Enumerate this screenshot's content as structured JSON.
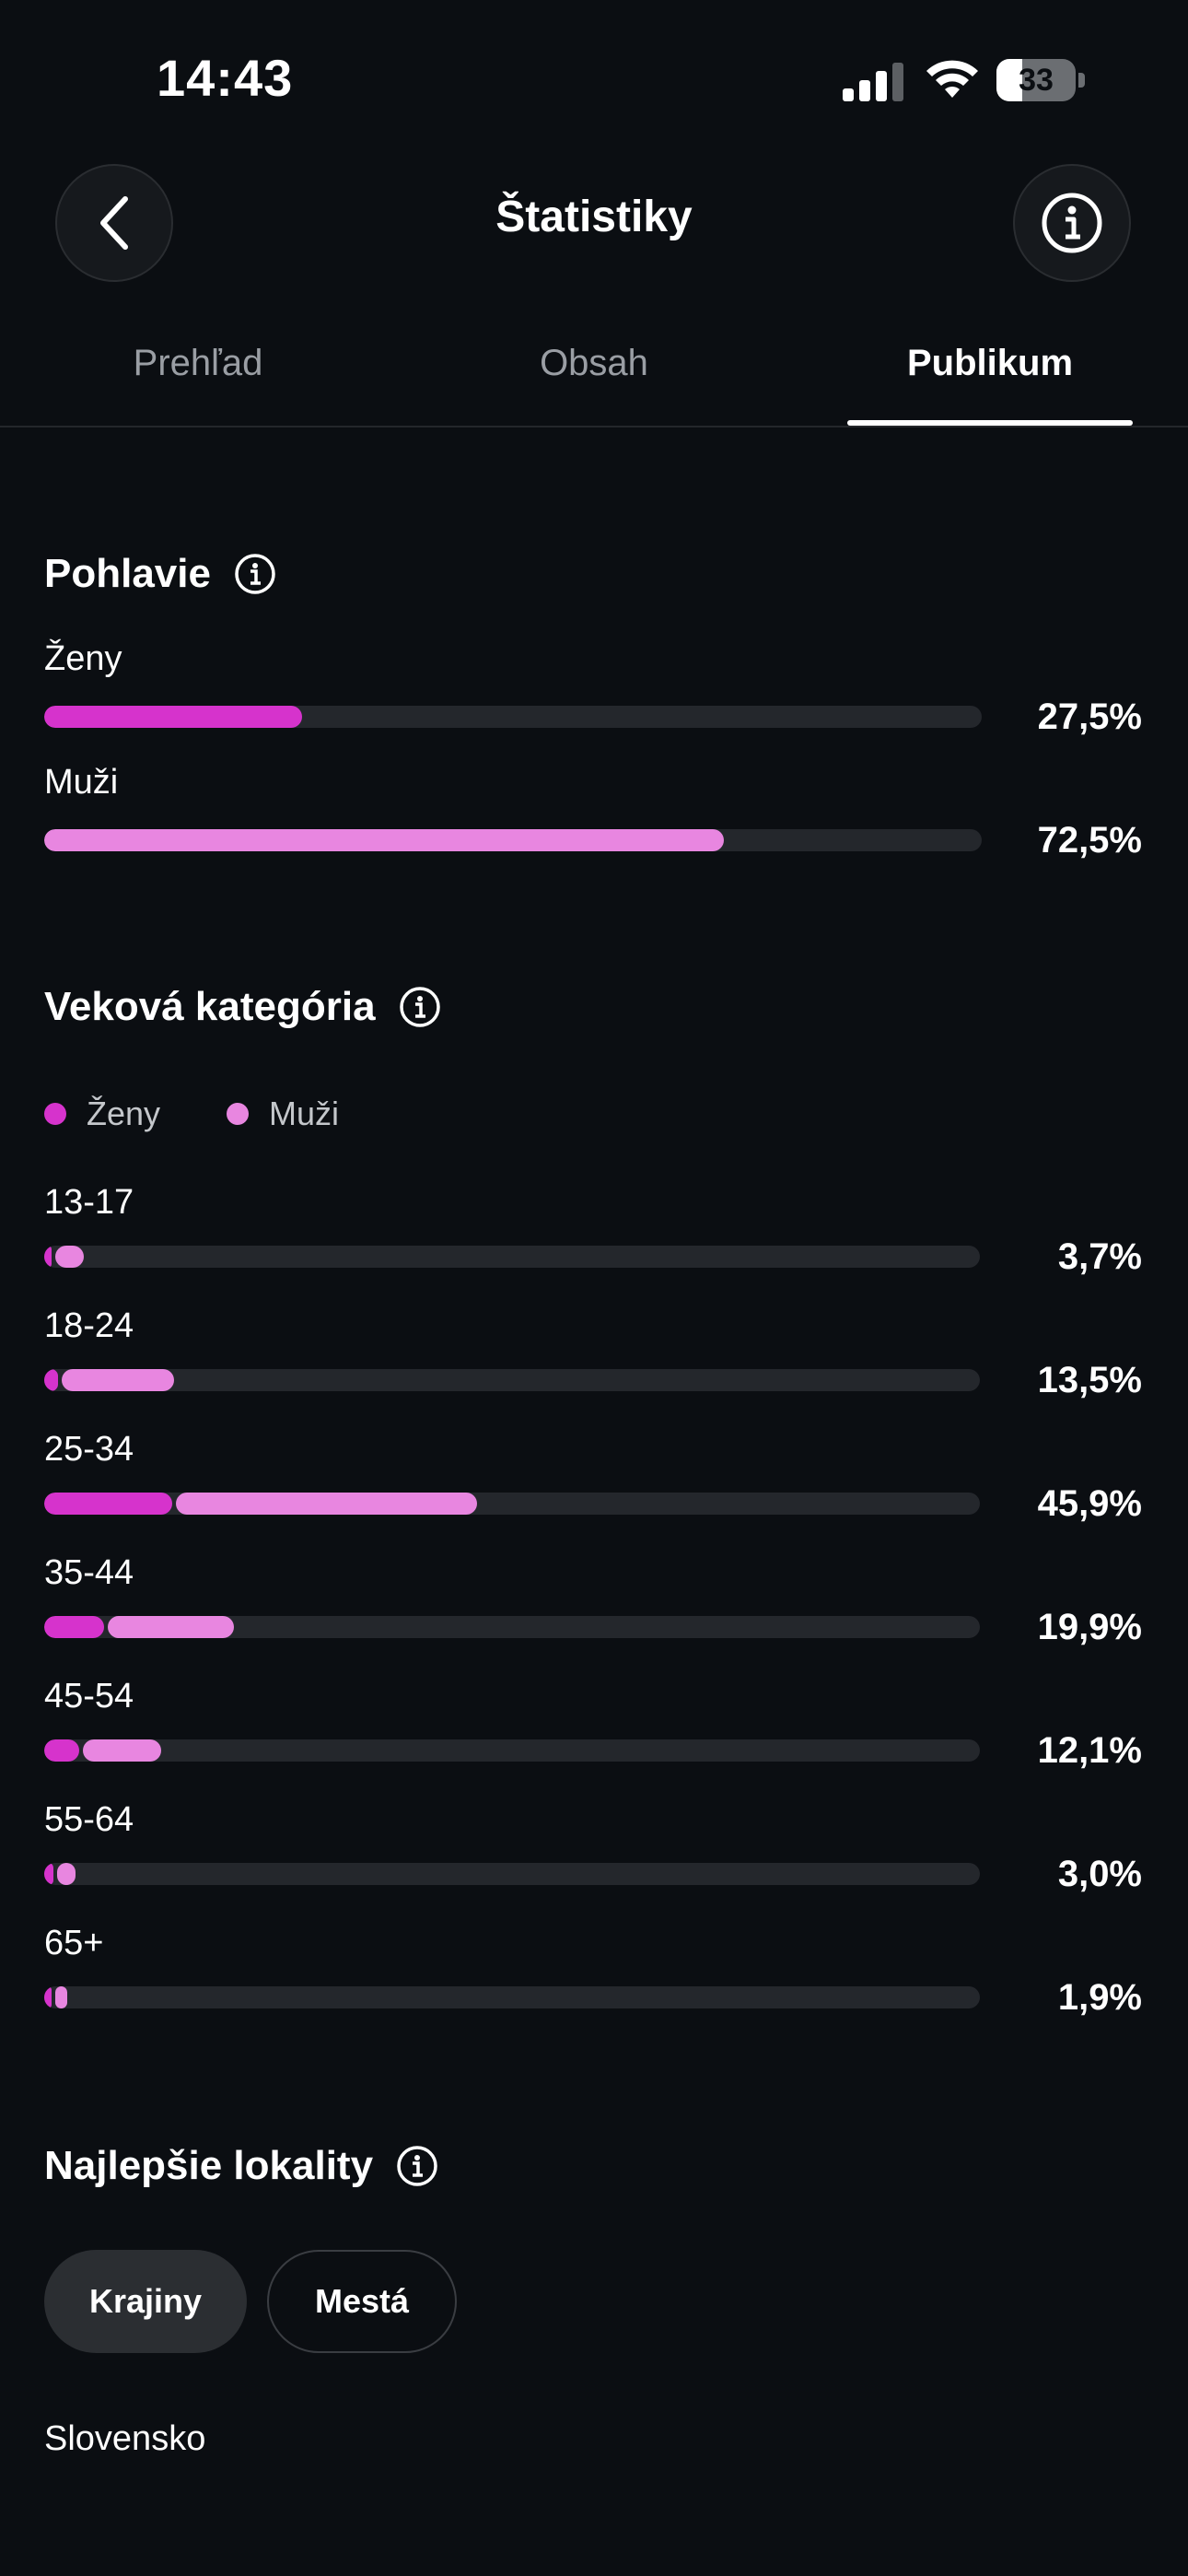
{
  "status": {
    "time": "14:43",
    "battery": "33",
    "battery_level": 0.33
  },
  "header": {
    "title": "Štatistiky"
  },
  "tabs": [
    {
      "label": "Prehľad",
      "active": false
    },
    {
      "label": "Obsah",
      "active": false
    },
    {
      "label": "Publikum",
      "active": true
    }
  ],
  "gender": {
    "title": "Pohlavie",
    "rows": [
      {
        "label": "Ženy",
        "value": "27,5%",
        "fraction": 0.275
      },
      {
        "label": "Muži",
        "value": "72,5%",
        "fraction": 0.725
      }
    ]
  },
  "age": {
    "title": "Veková kategória",
    "legend": {
      "women": "Ženy",
      "men": "Muži"
    },
    "rows": [
      {
        "label": "13-17",
        "value": "3,7%",
        "women_fraction": 0.006,
        "men_fraction": 0.031
      },
      {
        "label": "18-24",
        "value": "13,5%",
        "women_fraction": 0.015,
        "men_fraction": 0.12
      },
      {
        "label": "25-34",
        "value": "45,9%",
        "women_fraction": 0.137,
        "men_fraction": 0.322
      },
      {
        "label": "35-44",
        "value": "19,9%",
        "women_fraction": 0.064,
        "men_fraction": 0.135
      },
      {
        "label": "45-54",
        "value": "12,1%",
        "women_fraction": 0.037,
        "men_fraction": 0.084
      },
      {
        "label": "55-64",
        "value": "3,0%",
        "women_fraction": 0.01,
        "men_fraction": 0.02
      },
      {
        "label": "65+",
        "value": "1,9%",
        "women_fraction": 0.006,
        "men_fraction": 0.013
      }
    ]
  },
  "locations": {
    "title": "Najlepšie lokality",
    "chips": [
      {
        "label": "Krajiny",
        "selected": true
      },
      {
        "label": "Mestá",
        "selected": false
      }
    ],
    "first_item": "Slovensko"
  },
  "colors": {
    "women": "#d633cc",
    "men": "#e886e0",
    "background": "#0b0e12",
    "track": "#24272c"
  }
}
